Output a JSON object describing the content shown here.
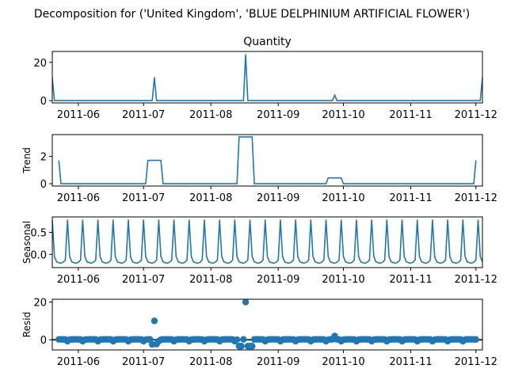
{
  "figure": {
    "suptitle": "Decomposition for ('United Kingdom', 'BLUE DELPHINIUM ARTIFICIAL FLOWER')"
  },
  "chart_data": [
    {
      "type": "line",
      "title": "Quantity",
      "ylabel": "",
      "x_start": "2011-05-20",
      "x_end": "2011-12-04",
      "xlim": [
        "2011-05-20",
        "2011-12-04"
      ],
      "ylim": [
        -1.2,
        25.7
      ],
      "xticks": [
        "2011-06",
        "2011-07",
        "2011-08",
        "2011-09",
        "2011-10",
        "2011-11",
        "2011-12"
      ],
      "yticks": [
        0,
        20
      ],
      "baseline": 0,
      "spikes": [
        {
          "x": "2011-05-20",
          "y": 12
        },
        {
          "x": "2011-07-06",
          "y": 12
        },
        {
          "x": "2011-08-17",
          "y": 24
        },
        {
          "x": "2011-09-27",
          "y": 3
        },
        {
          "x": "2011-12-04",
          "y": 12
        }
      ]
    },
    {
      "type": "line",
      "title": "",
      "ylabel": "Trend",
      "xlim": [
        "2011-05-20",
        "2011-12-04"
      ],
      "ylim": [
        -0.17,
        3.6
      ],
      "xticks": [
        "2011-06",
        "2011-07",
        "2011-08",
        "2011-09",
        "2011-10",
        "2011-11",
        "2011-12"
      ],
      "yticks": [
        0,
        2
      ],
      "points": [
        [
          "2011-05-23",
          1.71
        ],
        [
          "2011-05-24",
          0
        ],
        [
          "2011-07-02",
          0
        ],
        [
          "2011-07-03",
          1.71
        ],
        [
          "2011-07-09",
          1.71
        ],
        [
          "2011-07-10",
          0
        ],
        [
          "2011-08-13",
          0
        ],
        [
          "2011-08-14",
          3.43
        ],
        [
          "2011-08-20",
          3.43
        ],
        [
          "2011-08-21",
          0
        ],
        [
          "2011-09-23",
          0
        ],
        [
          "2011-09-24",
          0.43
        ],
        [
          "2011-09-30",
          0.43
        ],
        [
          "2011-10-01",
          0
        ],
        [
          "2011-11-30",
          0
        ],
        [
          "2011-12-01",
          1.71
        ]
      ]
    },
    {
      "type": "line",
      "title": "",
      "ylabel": "Seasonal",
      "xlim": [
        "2011-05-20",
        "2011-12-04"
      ],
      "ylim": [
        -0.3,
        0.85
      ],
      "xticks": [
        "2011-06",
        "2011-07",
        "2011-08",
        "2011-09",
        "2011-10",
        "2011-11",
        "2011-12"
      ],
      "yticks": [
        0.0,
        0.5
      ],
      "ytick_labels": [
        "0.0",
        "0.5"
      ],
      "period_days": 7,
      "first_peak": "2011-05-27",
      "weekly_pattern": [
        0.78,
        -0.05,
        -0.17,
        -0.19,
        -0.2,
        -0.18,
        -0.13
      ]
    },
    {
      "type": "scatter",
      "title": "",
      "ylabel": "Resid",
      "xlim": [
        "2011-05-20",
        "2011-12-04"
      ],
      "ylim": [
        -5.4,
        21.5
      ],
      "xticks": [
        "2011-06",
        "2011-07",
        "2011-08",
        "2011-09",
        "2011-10",
        "2011-11",
        "2011-12"
      ],
      "yticks": [
        0,
        20
      ],
      "residual_start": "2011-05-23",
      "residual_end": "2011-12-01",
      "outliers": [
        {
          "x": "2011-07-06",
          "y": 10
        },
        {
          "x": "2011-08-17",
          "y": 20
        },
        {
          "x": "2011-09-27",
          "y": 2
        },
        {
          "x": "2011-07-05",
          "y": -2.5
        },
        {
          "x": "2011-07-07",
          "y": -2.3
        },
        {
          "x": "2011-08-14",
          "y": -3.4
        },
        {
          "x": "2011-08-15",
          "y": -3.4
        },
        {
          "x": "2011-08-18",
          "y": -3.4
        },
        {
          "x": "2011-08-19",
          "y": -3.4
        },
        {
          "x": "2011-08-20",
          "y": -3.4
        }
      ]
    }
  ]
}
